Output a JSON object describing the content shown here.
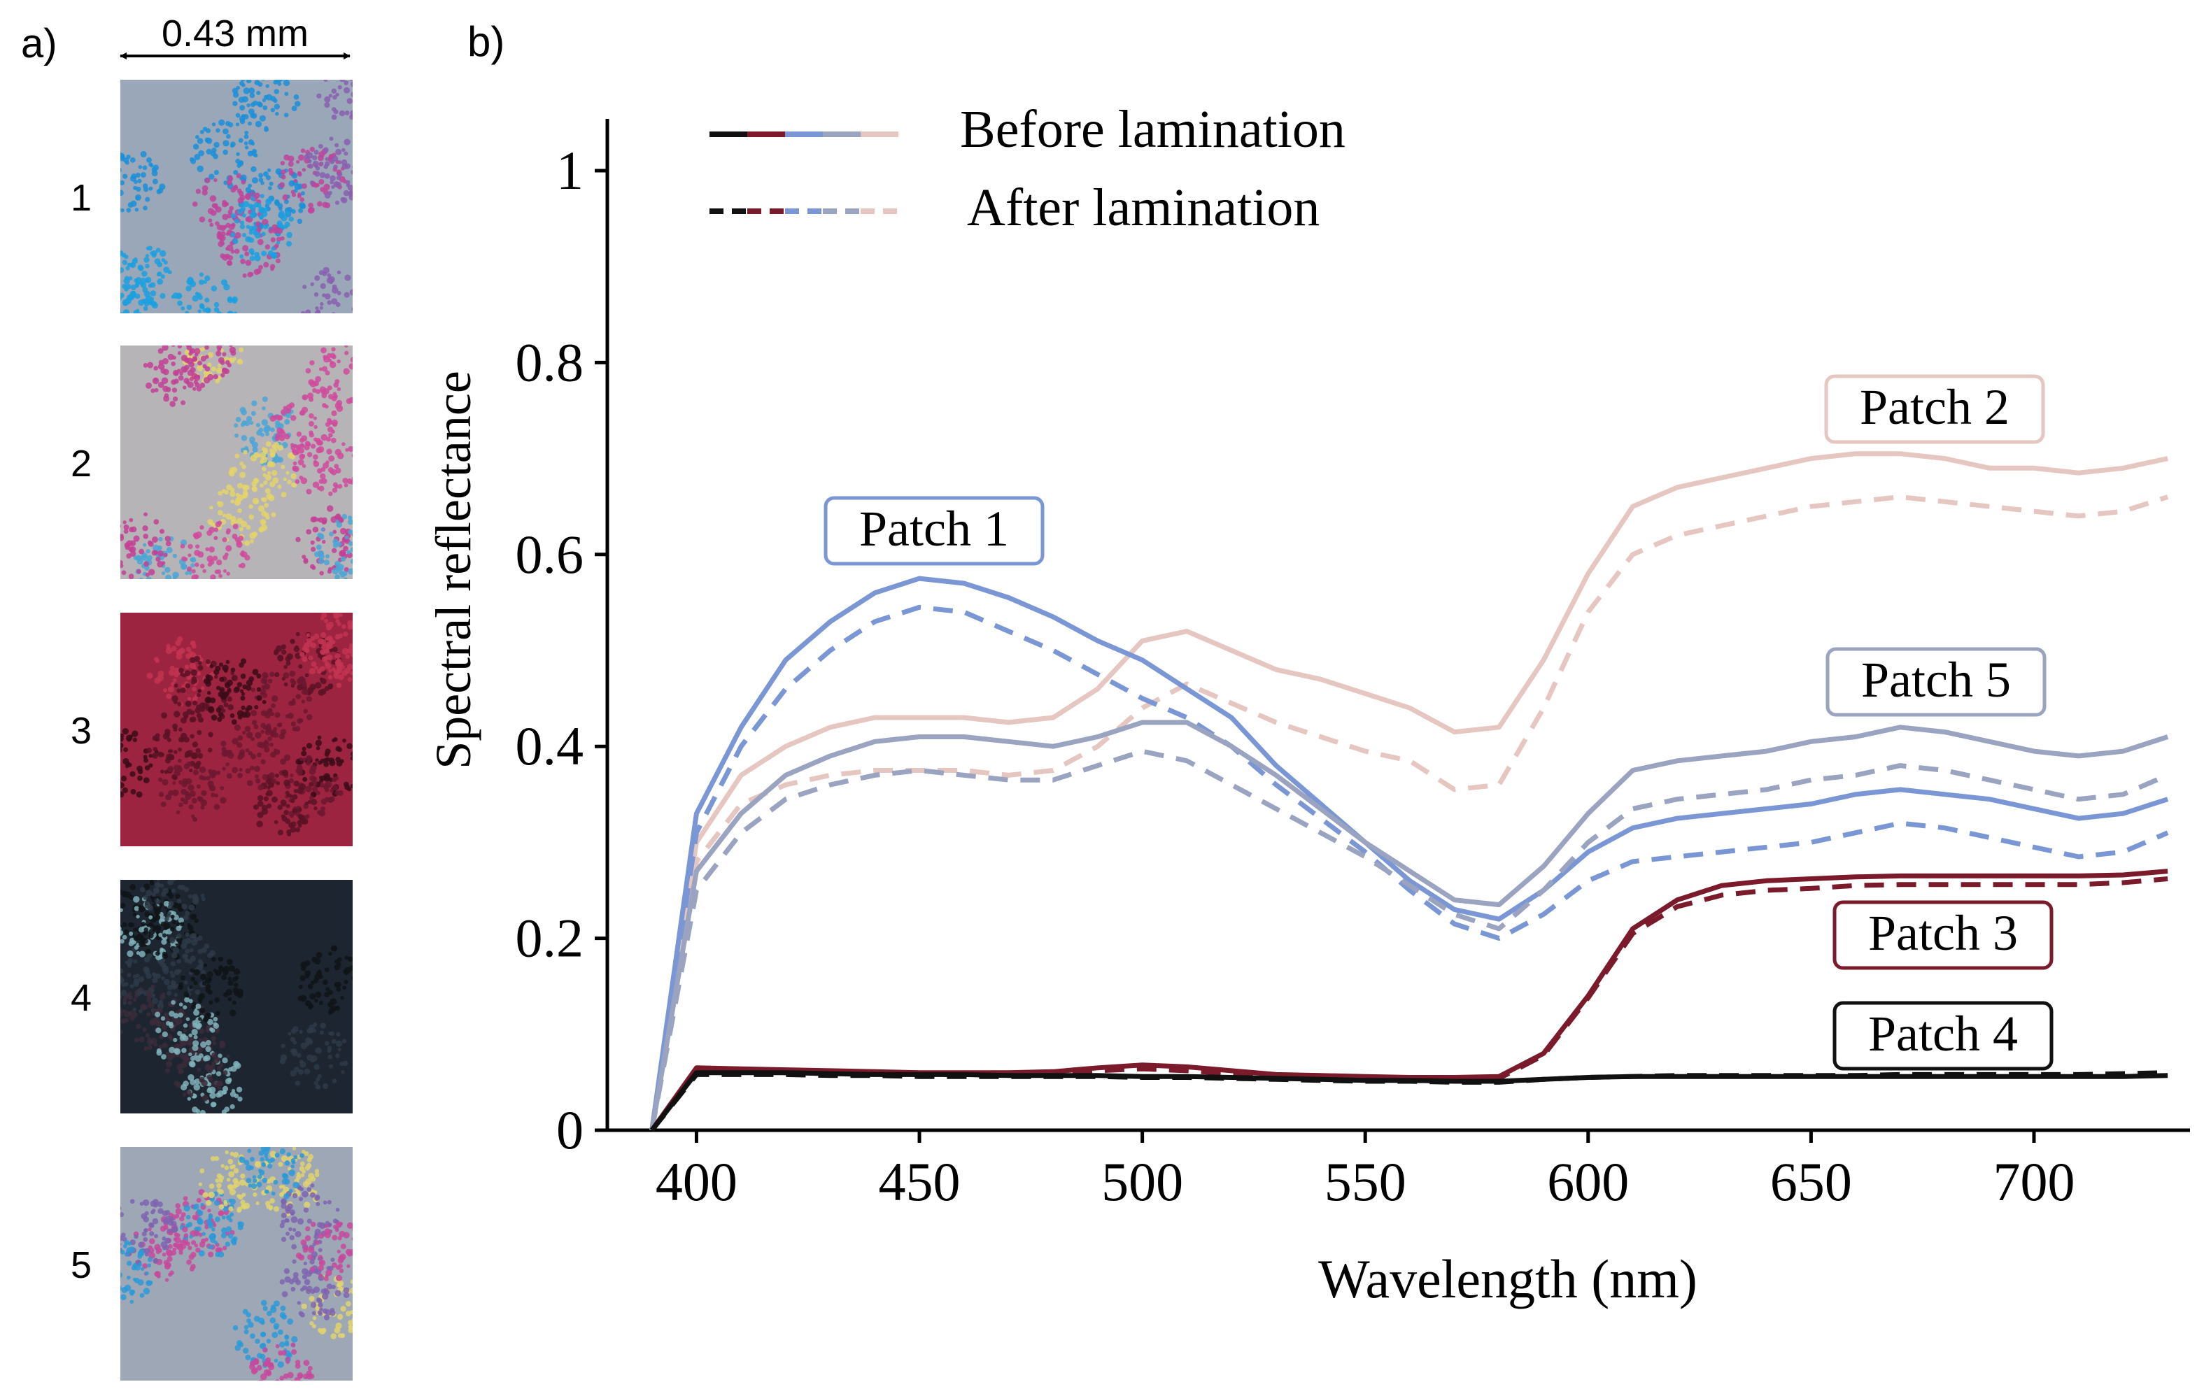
{
  "panel_a": {
    "label": "a)",
    "scale_label": "0.43 mm",
    "patches": [
      {
        "number": "1",
        "base": "#9aa7b8",
        "dots": [
          "#1ba0e0",
          "#1a8fd8",
          "#c0449a",
          "#8a5fb0"
        ]
      },
      {
        "number": "2",
        "base": "#b7b4b8",
        "dots": [
          "#d04a9c",
          "#c33f94",
          "#e3d36a",
          "#4aa6d6"
        ]
      },
      {
        "number": "3",
        "base": "#9d2440",
        "dots": [
          "#5a1224",
          "#6d1730",
          "#c33452",
          "#3b0c18"
        ]
      },
      {
        "number": "4",
        "base": "#1d2530",
        "dots": [
          "#0f1418",
          "#2e3a48",
          "#3a2c3a",
          "#7fb0b8"
        ]
      },
      {
        "number": "5",
        "base": "#9ea7b6",
        "dots": [
          "#2a9ad8",
          "#c8489c",
          "#e0d46e",
          "#7c64b0"
        ]
      }
    ]
  },
  "chart_data": {
    "panel_label": "b)",
    "type": "line",
    "xlabel": "Wavelength (nm)",
    "ylabel": "Spectral reflectance",
    "xlim": [
      380,
      735
    ],
    "ylim": [
      0,
      1.05
    ],
    "xticks": [
      400,
      450,
      500,
      550,
      600,
      650,
      700
    ],
    "yticks": [
      0,
      0.2,
      0.4,
      0.6,
      0.8,
      1
    ],
    "ytick_labels": [
      "0",
      "0.2",
      "0.4",
      "0.6",
      "0.8",
      "1"
    ],
    "legend": {
      "position": "top-left",
      "entries": [
        {
          "label": "Before lamination",
          "style": "solid",
          "colors": [
            "#111111",
            "#7a1a2a",
            "#7b96d4",
            "#9aa3bf",
            "#e5c6c0"
          ]
        },
        {
          "label": "After lamination",
          "style": "dashed",
          "colors": [
            "#111111",
            "#7a1a2a",
            "#7b96d4",
            "#9aa3bf",
            "#e5c6c0"
          ]
        }
      ]
    },
    "x": [
      390,
      400,
      410,
      420,
      430,
      440,
      450,
      460,
      470,
      480,
      490,
      500,
      510,
      520,
      530,
      540,
      550,
      560,
      570,
      580,
      590,
      600,
      610,
      620,
      630,
      640,
      650,
      660,
      670,
      680,
      690,
      700,
      710,
      720,
      730
    ],
    "series": [
      {
        "name": "Patch 2",
        "color": "#e5c6c0",
        "annotation_label": "Patch 2",
        "before": [
          0,
          0.3,
          0.37,
          0.4,
          0.42,
          0.43,
          0.43,
          0.43,
          0.425,
          0.43,
          0.46,
          0.51,
          0.52,
          0.5,
          0.48,
          0.47,
          0.455,
          0.44,
          0.415,
          0.42,
          0.49,
          0.58,
          0.65,
          0.67,
          0.68,
          0.69,
          0.7,
          0.705,
          0.705,
          0.7,
          0.69,
          0.69,
          0.685,
          0.69,
          0.7
        ],
        "after": [
          0,
          0.28,
          0.34,
          0.36,
          0.37,
          0.375,
          0.375,
          0.375,
          0.37,
          0.375,
          0.4,
          0.44,
          0.465,
          0.445,
          0.425,
          0.41,
          0.395,
          0.385,
          0.355,
          0.36,
          0.44,
          0.54,
          0.6,
          0.62,
          0.63,
          0.64,
          0.65,
          0.655,
          0.66,
          0.655,
          0.65,
          0.645,
          0.64,
          0.645,
          0.66
        ]
      },
      {
        "name": "Patch 1",
        "color": "#7b96d4",
        "annotation_label": "Patch 1",
        "before": [
          0,
          0.33,
          0.42,
          0.49,
          0.53,
          0.56,
          0.575,
          0.57,
          0.555,
          0.535,
          0.51,
          0.49,
          0.46,
          0.43,
          0.38,
          0.34,
          0.3,
          0.26,
          0.23,
          0.22,
          0.25,
          0.29,
          0.315,
          0.325,
          0.33,
          0.335,
          0.34,
          0.35,
          0.355,
          0.35,
          0.345,
          0.335,
          0.325,
          0.33,
          0.345
        ],
        "after": [
          0,
          0.31,
          0.4,
          0.46,
          0.5,
          0.53,
          0.545,
          0.54,
          0.52,
          0.5,
          0.475,
          0.45,
          0.43,
          0.4,
          0.36,
          0.325,
          0.29,
          0.25,
          0.215,
          0.2,
          0.225,
          0.26,
          0.28,
          0.285,
          0.29,
          0.295,
          0.3,
          0.31,
          0.32,
          0.315,
          0.305,
          0.295,
          0.285,
          0.29,
          0.31
        ]
      },
      {
        "name": "Patch 5",
        "color": "#9aa3bf",
        "annotation_label": "Patch 5",
        "before": [
          0,
          0.27,
          0.33,
          0.37,
          0.39,
          0.405,
          0.41,
          0.41,
          0.405,
          0.4,
          0.41,
          0.425,
          0.425,
          0.4,
          0.37,
          0.335,
          0.3,
          0.27,
          0.24,
          0.235,
          0.275,
          0.33,
          0.375,
          0.385,
          0.39,
          0.395,
          0.405,
          0.41,
          0.42,
          0.415,
          0.405,
          0.395,
          0.39,
          0.395,
          0.41
        ],
        "after": [
          0,
          0.25,
          0.31,
          0.345,
          0.36,
          0.37,
          0.375,
          0.37,
          0.365,
          0.365,
          0.38,
          0.395,
          0.385,
          0.36,
          0.335,
          0.31,
          0.285,
          0.255,
          0.225,
          0.21,
          0.25,
          0.3,
          0.335,
          0.345,
          0.35,
          0.355,
          0.365,
          0.37,
          0.38,
          0.375,
          0.365,
          0.355,
          0.345,
          0.35,
          0.37
        ]
      },
      {
        "name": "Patch 3",
        "color": "#7a1a2a",
        "annotation_label": "Patch 3",
        "before": [
          0,
          0.065,
          0.064,
          0.063,
          0.062,
          0.061,
          0.06,
          0.06,
          0.06,
          0.061,
          0.065,
          0.068,
          0.066,
          0.062,
          0.058,
          0.057,
          0.056,
          0.055,
          0.055,
          0.056,
          0.08,
          0.14,
          0.21,
          0.24,
          0.255,
          0.26,
          0.262,
          0.264,
          0.265,
          0.265,
          0.265,
          0.265,
          0.265,
          0.266,
          0.27
        ],
        "after": [
          0,
          0.062,
          0.061,
          0.06,
          0.06,
          0.059,
          0.058,
          0.058,
          0.058,
          0.059,
          0.062,
          0.064,
          0.062,
          0.059,
          0.056,
          0.055,
          0.054,
          0.053,
          0.053,
          0.054,
          0.078,
          0.138,
          0.205,
          0.233,
          0.245,
          0.25,
          0.252,
          0.255,
          0.256,
          0.256,
          0.256,
          0.256,
          0.256,
          0.258,
          0.262
        ]
      },
      {
        "name": "Patch 4",
        "color": "#111111",
        "annotation_label": "Patch 4",
        "before": [
          0,
          0.06,
          0.06,
          0.06,
          0.059,
          0.058,
          0.058,
          0.058,
          0.057,
          0.057,
          0.057,
          0.056,
          0.056,
          0.055,
          0.054,
          0.053,
          0.052,
          0.052,
          0.051,
          0.051,
          0.053,
          0.055,
          0.056,
          0.056,
          0.056,
          0.056,
          0.056,
          0.056,
          0.056,
          0.056,
          0.056,
          0.056,
          0.056,
          0.056,
          0.057
        ],
        "after": [
          0,
          0.058,
          0.058,
          0.058,
          0.057,
          0.057,
          0.056,
          0.056,
          0.056,
          0.056,
          0.056,
          0.055,
          0.055,
          0.054,
          0.053,
          0.052,
          0.051,
          0.051,
          0.05,
          0.05,
          0.053,
          0.055,
          0.056,
          0.057,
          0.057,
          0.057,
          0.057,
          0.057,
          0.058,
          0.058,
          0.058,
          0.058,
          0.058,
          0.059,
          0.06
        ]
      }
    ]
  }
}
